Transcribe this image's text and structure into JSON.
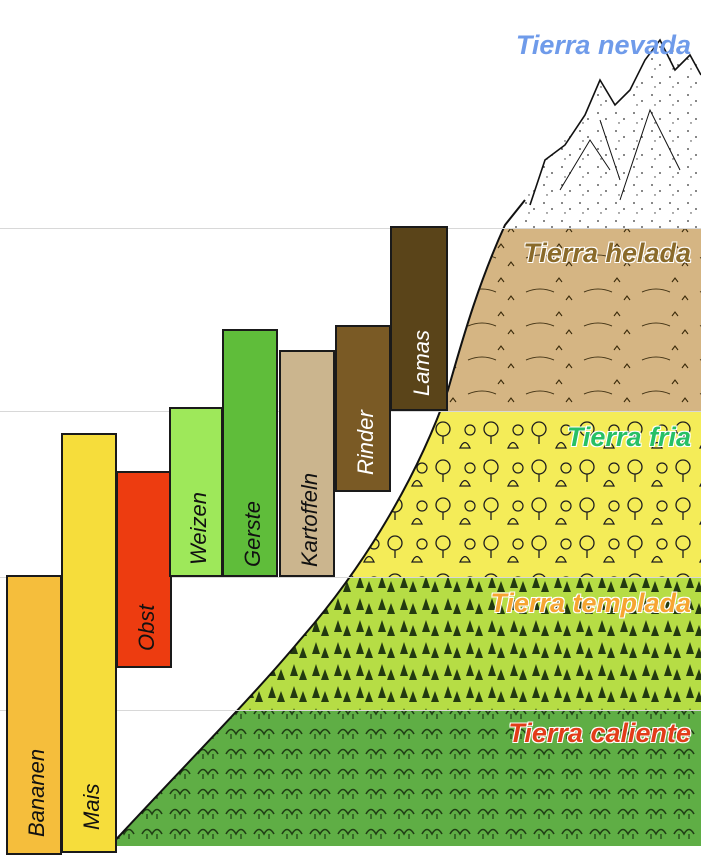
{
  "zones": [
    {
      "id": "nevada",
      "label": "Tierra nevada",
      "color": "#6f9bea"
    },
    {
      "id": "helada",
      "label": "Tierra helada",
      "color": "#8a6a2a"
    },
    {
      "id": "fria",
      "label": "Tierra fria",
      "color": "#27c065"
    },
    {
      "id": "templada",
      "label": "Tierra templada",
      "color": "#f6a531"
    },
    {
      "id": "caliente",
      "label": "Tierra caliente",
      "color": "#e23c19"
    }
  ],
  "bars": [
    {
      "label": "Bananen",
      "color": "#f5be3c"
    },
    {
      "label": "Mais",
      "color": "#f6dd3b"
    },
    {
      "label": "Obst",
      "color": "#ed3c10"
    },
    {
      "label": "Weizen",
      "color": "#9ee85a"
    },
    {
      "label": "Gerste",
      "color": "#5fbd3a"
    },
    {
      "label": "Kartoffeln",
      "color": "#cbb58e"
    },
    {
      "label": "Rinder",
      "color": "#7a5a25"
    },
    {
      "label": "Lamas",
      "color": "#5a4419"
    }
  ]
}
